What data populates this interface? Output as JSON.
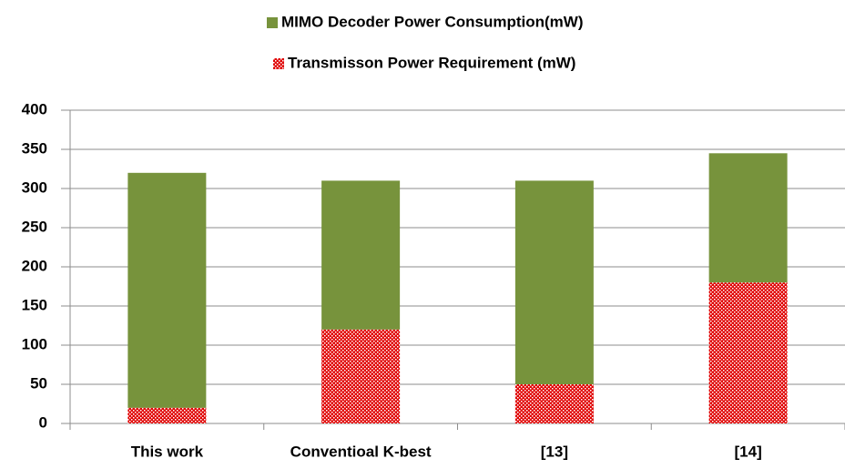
{
  "chart_data": {
    "type": "stacked_bar",
    "categories": [
      "This work",
      "Conventioal K-best",
      "[13]",
      "[14]"
    ],
    "series": [
      {
        "name": "MIMO Decoder Power Consumption(mW)",
        "color": "#77933c",
        "values": [
          300,
          190,
          260,
          165
        ]
      },
      {
        "name": "Transmisson Power Requirement (mW)",
        "color": "#e00000",
        "values": [
          20,
          120,
          50,
          180
        ]
      }
    ],
    "ylim": [
      0,
      400
    ],
    "yticks": [
      0,
      50,
      100,
      150,
      200,
      250,
      300,
      350,
      400
    ],
    "grid": true
  }
}
